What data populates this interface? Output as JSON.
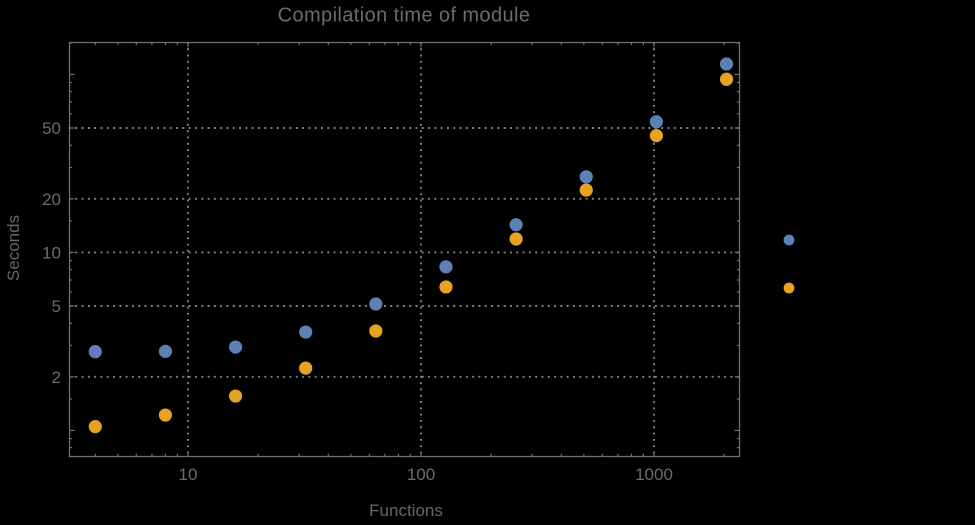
{
  "chart_data": {
    "type": "scatter",
    "title": "Compilation time of module",
    "xlabel": "Functions",
    "ylabel": "Seconds",
    "x_scale": "log",
    "y_scale": "log",
    "xlim": [
      3.1,
      2340
    ],
    "ylim": [
      0.71,
      152
    ],
    "grid": {
      "style": "dotted",
      "at": "labeled major ticks",
      "color": "#848484"
    },
    "x": [
      4,
      8,
      16,
      32,
      64,
      128,
      256,
      512,
      1024,
      2048
    ],
    "series": [
      {
        "name": "series-1-blue",
        "color": "#5E81B5",
        "values": [
          2.77,
          2.78,
          2.94,
          3.57,
          5.13,
          8.3,
          14.3,
          26.6,
          54.2,
          114.5
        ]
      },
      {
        "name": "series-2-orange",
        "color": "#E6A322",
        "values": [
          1.05,
          1.22,
          1.56,
          2.24,
          3.62,
          6.4,
          11.9,
          22.4,
          45.3,
          93.9
        ]
      }
    ],
    "x_ticks": {
      "major": [
        10,
        100,
        1000
      ],
      "major_labels": [
        "10",
        "100",
        "1000"
      ],
      "minor": [
        4,
        5,
        6,
        7,
        8,
        9,
        20,
        30,
        40,
        50,
        60,
        70,
        80,
        90,
        200,
        300,
        400,
        500,
        600,
        700,
        800,
        900,
        2000
      ]
    },
    "y_ticks": {
      "major": [
        2,
        5,
        10,
        20,
        50
      ],
      "major_labels": [
        "2",
        "5",
        "10",
        "20",
        "50"
      ],
      "medium": [
        1,
        100
      ],
      "minor": [
        0.8,
        0.9,
        1.5,
        3,
        4,
        6,
        7,
        8,
        9,
        15,
        30,
        40,
        60,
        70,
        80,
        90,
        150
      ]
    },
    "legend": {
      "position": "outside-right",
      "entries": [
        {
          "marker_color": "#5E81B5",
          "label": ""
        },
        {
          "marker_color": "#E6A322",
          "label": ""
        }
      ]
    }
  },
  "colors": {
    "background": "#000000",
    "frame": "#6f6f6f",
    "grid": "#848484",
    "text": "#6c6c6c",
    "series_blue": "#5E81B5",
    "series_orange": "#E6A322"
  }
}
